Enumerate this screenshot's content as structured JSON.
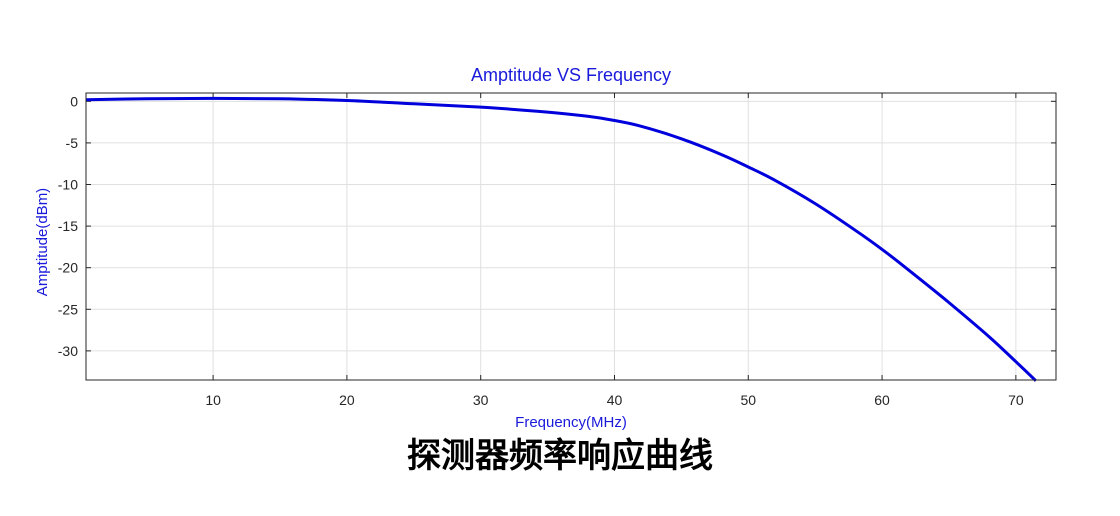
{
  "caption": "探测器频率响应曲线",
  "chart_data": {
    "type": "line",
    "title": "Amptitude VS Frequency",
    "xlabel": "Frequency(MHz)",
    "ylabel": "Amptitude(dBm)",
    "xlim": [
      0.5,
      73
    ],
    "ylim": [
      -33.5,
      1
    ],
    "xticks": [
      10,
      20,
      30,
      40,
      50,
      60,
      70
    ],
    "yticks": [
      0,
      -5,
      -10,
      -15,
      -20,
      -25,
      -30
    ],
    "grid": true,
    "colors": {
      "line": "#0000dd",
      "text": "#1a1adb",
      "grid": "#e0e0e0",
      "axis": "#262626"
    },
    "series": [
      {
        "x": [
          0.5,
          5,
          10,
          15,
          20,
          25,
          30,
          35,
          38,
          40,
          42,
          45,
          48,
          50,
          52,
          55,
          58,
          60,
          62,
          65,
          68,
          70,
          71.5
        ],
        "y": [
          0.2,
          0.3,
          0.35,
          0.3,
          0.1,
          -0.3,
          -0.7,
          -1.3,
          -1.8,
          -2.3,
          -3.0,
          -4.5,
          -6.4,
          -7.9,
          -9.5,
          -12.3,
          -15.5,
          -17.8,
          -20.3,
          -24.2,
          -28.3,
          -31.3,
          -33.6
        ]
      }
    ]
  }
}
